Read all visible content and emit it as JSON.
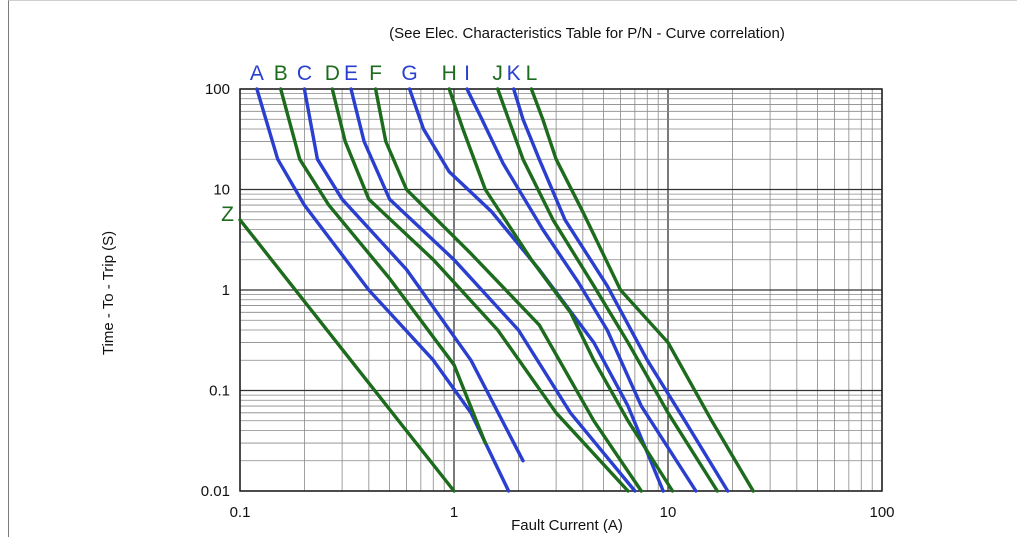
{
  "chart_data": {
    "type": "line",
    "title": "(See Elec. Characteristics Table for P/N - Curve correlation)",
    "xlabel": "Fault Current (A)",
    "ylabel": "Time - To - Trip (S)",
    "xscale": "log",
    "yscale": "log",
    "xlim": [
      0.1,
      100
    ],
    "ylim": [
      0.01,
      100
    ],
    "grid": true,
    "x_tick_labels": [
      "0.1",
      "1",
      "10",
      "100"
    ],
    "y_tick_labels": [
      "100",
      "10",
      "1",
      "0.1",
      "0.01"
    ],
    "colors": {
      "blue": "#2a3fcf",
      "green": "#1d6b1d"
    },
    "series": [
      {
        "name": "A",
        "color": "blue",
        "points": [
          [
            0.12,
            100
          ],
          [
            0.15,
            20
          ],
          [
            0.2,
            7
          ],
          [
            0.4,
            1
          ],
          [
            0.8,
            0.2
          ],
          [
            1.2,
            0.06
          ],
          [
            1.8,
            0.01
          ]
        ]
      },
      {
        "name": "B",
        "color": "green",
        "points": [
          [
            0.155,
            100
          ],
          [
            0.19,
            20
          ],
          [
            0.26,
            7
          ],
          [
            0.5,
            1.3
          ],
          [
            1.0,
            0.18
          ],
          [
            1.4,
            0.03
          ]
        ]
      },
      {
        "name": "C",
        "color": "blue",
        "points": [
          [
            0.2,
            100
          ],
          [
            0.23,
            20
          ],
          [
            0.3,
            8
          ],
          [
            0.6,
            1.6
          ],
          [
            1.2,
            0.2
          ],
          [
            2.1,
            0.02
          ]
        ]
      },
      {
        "name": "D",
        "color": "green",
        "points": [
          [
            0.27,
            100
          ],
          [
            0.31,
            30
          ],
          [
            0.4,
            8
          ],
          [
            0.8,
            2
          ],
          [
            1.6,
            0.4
          ],
          [
            3.0,
            0.06
          ],
          [
            6.5,
            0.01
          ]
        ]
      },
      {
        "name": "E",
        "color": "blue",
        "points": [
          [
            0.33,
            100
          ],
          [
            0.38,
            30
          ],
          [
            0.5,
            8
          ],
          [
            1.0,
            2
          ],
          [
            2.0,
            0.4
          ],
          [
            3.5,
            0.06
          ],
          [
            7.0,
            0.01
          ]
        ]
      },
      {
        "name": "F",
        "color": "green",
        "points": [
          [
            0.43,
            100
          ],
          [
            0.48,
            30
          ],
          [
            0.6,
            10
          ],
          [
            1.2,
            2.3
          ],
          [
            2.5,
            0.45
          ],
          [
            4.5,
            0.05
          ],
          [
            7.5,
            0.01
          ]
        ]
      },
      {
        "name": "G",
        "color": "blue",
        "points": [
          [
            0.62,
            100
          ],
          [
            0.72,
            40
          ],
          [
            0.95,
            15
          ],
          [
            1.5,
            6
          ],
          [
            2.5,
            1.6
          ],
          [
            4.5,
            0.3
          ],
          [
            6.5,
            0.07
          ],
          [
            9.5,
            0.01
          ]
        ]
      },
      {
        "name": "H",
        "color": "green",
        "points": [
          [
            0.95,
            100
          ],
          [
            1.1,
            40
          ],
          [
            1.4,
            10
          ],
          [
            2.3,
            2
          ],
          [
            3.5,
            0.6
          ],
          [
            4.5,
            0.2
          ],
          [
            6.5,
            0.05
          ],
          [
            10.5,
            0.01
          ]
        ]
      },
      {
        "name": "I",
        "color": "blue",
        "points": [
          [
            1.15,
            100
          ],
          [
            1.35,
            50
          ],
          [
            1.7,
            18
          ],
          [
            2.6,
            4
          ],
          [
            3.8,
            1.2
          ],
          [
            5.2,
            0.4
          ],
          [
            7.5,
            0.07
          ],
          [
            13.5,
            0.01
          ]
        ]
      },
      {
        "name": "J",
        "color": "green",
        "points": [
          [
            1.6,
            100
          ],
          [
            1.8,
            50
          ],
          [
            2.1,
            20
          ],
          [
            2.9,
            5
          ],
          [
            4.5,
            1.1
          ],
          [
            6.5,
            0.3
          ],
          [
            10,
            0.06
          ],
          [
            17,
            0.01
          ]
        ]
      },
      {
        "name": "K",
        "color": "blue",
        "points": [
          [
            1.9,
            100
          ],
          [
            2.1,
            50
          ],
          [
            2.5,
            20
          ],
          [
            3.3,
            5
          ],
          [
            5.2,
            1.1
          ],
          [
            8,
            0.2
          ],
          [
            12,
            0.05
          ],
          [
            19,
            0.01
          ]
        ]
      },
      {
        "name": "L",
        "color": "green",
        "points": [
          [
            2.3,
            100
          ],
          [
            2.6,
            50
          ],
          [
            3.0,
            20
          ],
          [
            4.0,
            6
          ],
          [
            6.0,
            1.0
          ],
          [
            10,
            0.3
          ],
          [
            16,
            0.05
          ],
          [
            25,
            0.01
          ]
        ]
      },
      {
        "name": "Z",
        "color": "green",
        "points": [
          [
            0.1,
            5
          ],
          [
            1.0,
            0.01
          ]
        ]
      }
    ]
  }
}
